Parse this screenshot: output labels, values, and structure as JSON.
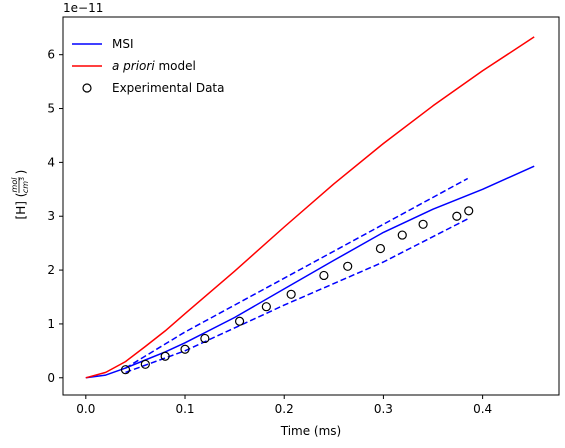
{
  "chart_data": {
    "type": "line",
    "xlabel": "Time (ms)",
    "ylabel": {
      "main": "[H]",
      "num": "mol",
      "den": "cm",
      "den_exp": "3"
    },
    "offset_text": "1e−11",
    "xlim": [
      -0.023,
      0.477
    ],
    "ylim": [
      -0.32,
      6.7
    ],
    "x_ticks": [
      0.0,
      0.1,
      0.2,
      0.3,
      0.4
    ],
    "x_tick_labels": [
      "0.0",
      "0.1",
      "0.2",
      "0.3",
      "0.4"
    ],
    "y_ticks": [
      0,
      1,
      2,
      3,
      4,
      5,
      6
    ],
    "y_tick_labels": [
      "0",
      "1",
      "2",
      "3",
      "4",
      "5",
      "6"
    ],
    "grid": false,
    "legend_position": "top-left",
    "legend": [
      {
        "label": "MSI",
        "kind": "line",
        "color": "#0000ff",
        "italic_part": ""
      },
      {
        "label": " model",
        "kind": "line",
        "color": "#ff0000",
        "italic_part": "a priori"
      },
      {
        "label": "Experimental Data",
        "kind": "marker",
        "color": "#000000",
        "italic_part": ""
      }
    ],
    "series": [
      {
        "name": "MSI",
        "style": "solid",
        "color": "#0000ff",
        "x": [
          0.0,
          0.02,
          0.04,
          0.06,
          0.08,
          0.1,
          0.15,
          0.2,
          0.25,
          0.3,
          0.35,
          0.4,
          0.452
        ],
        "y": [
          0.0,
          0.05,
          0.18,
          0.33,
          0.48,
          0.65,
          1.12,
          1.65,
          2.18,
          2.7,
          3.13,
          3.5,
          3.93
        ]
      },
      {
        "name": "a priori model",
        "style": "solid",
        "color": "#ff0000",
        "x": [
          0.0,
          0.02,
          0.04,
          0.06,
          0.08,
          0.1,
          0.15,
          0.2,
          0.25,
          0.3,
          0.35,
          0.4,
          0.452
        ],
        "y": [
          0.0,
          0.1,
          0.3,
          0.58,
          0.87,
          1.19,
          1.98,
          2.8,
          3.6,
          4.35,
          5.05,
          5.7,
          6.33
        ]
      },
      {
        "style": "dashed",
        "color": "#0000ff",
        "x": [
          0.04,
          0.1,
          0.2,
          0.3,
          0.385
        ],
        "y": [
          0.18,
          0.85,
          1.85,
          2.85,
          3.7
        ]
      },
      {
        "style": "dashed",
        "color": "#0000ff",
        "x": [
          0.04,
          0.1,
          0.2,
          0.3,
          0.385
        ],
        "y": [
          0.1,
          0.5,
          1.35,
          2.15,
          2.95
        ]
      },
      {
        "name": "Experimental Data",
        "style": "markers",
        "color": "#000000",
        "x": [
          0.04,
          0.06,
          0.08,
          0.1,
          0.12,
          0.155,
          0.182,
          0.207,
          0.24,
          0.264,
          0.297,
          0.319,
          0.34,
          0.374,
          0.386
        ],
        "y": [
          0.15,
          0.25,
          0.4,
          0.53,
          0.73,
          1.05,
          1.32,
          1.55,
          1.9,
          2.07,
          2.4,
          2.65,
          2.85,
          3.0,
          3.1
        ]
      }
    ]
  }
}
